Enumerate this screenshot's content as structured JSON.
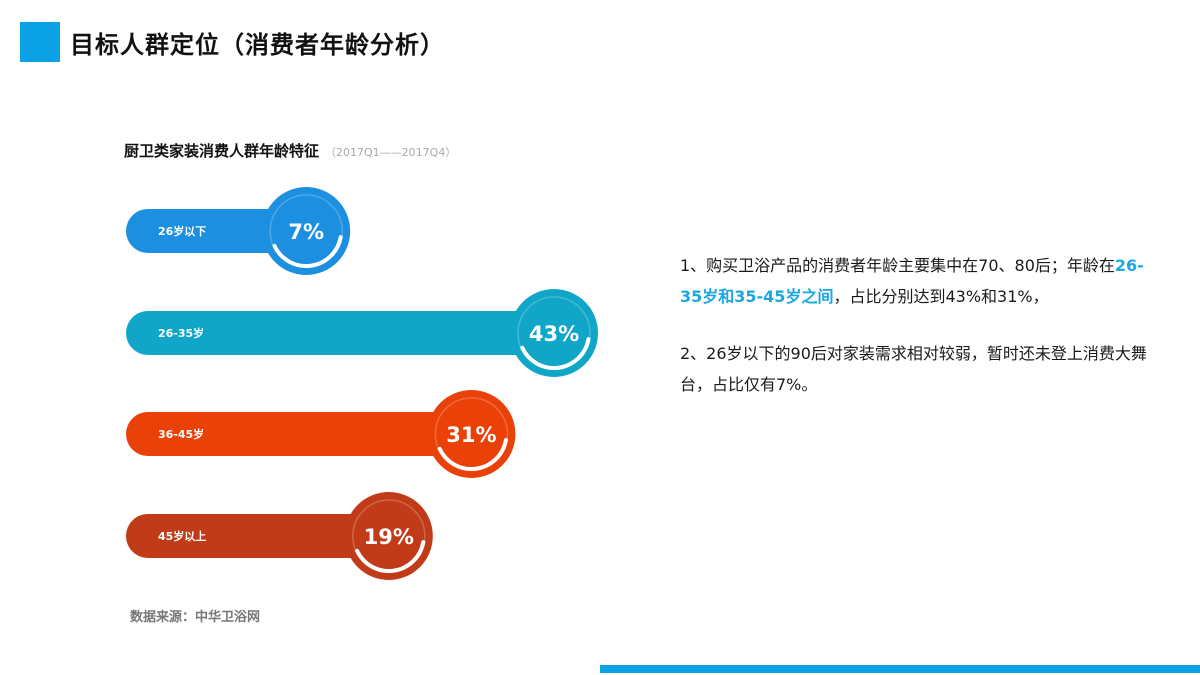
{
  "page": {
    "title": "目标人群定位（消费者年龄分析）"
  },
  "chart_data": {
    "type": "bar",
    "title": "厨卫类家装消费人群年龄特征",
    "subtitle": "（2017Q1——2017Q4）",
    "categories": [
      "26岁以下",
      "26-35岁",
      "36-45岁",
      "45岁以上"
    ],
    "values": [
      7,
      43,
      31,
      19
    ],
    "value_labels": [
      "7%",
      "43%",
      "31%",
      "19%"
    ],
    "unit": "%",
    "xlim": [
      0,
      43
    ],
    "colors": [
      "#1c8fe0",
      "#10a6c7",
      "#ea4108",
      "#c23b19"
    ],
    "grid": false,
    "legend": "none"
  },
  "source": {
    "text": "数据来源：中华卫浴网"
  },
  "description": {
    "p1_before": "1、购买卫浴产品的消费者年龄主要集中在70、80后；年龄在",
    "p1_highlight": "26-35岁和35-45岁之间",
    "p1_after": "，占比分别达到43%和31%，",
    "p2": "2、26岁以下的90后对家装需求相对较弱，暂时还未登上消费大舞台，占比仅有7%。",
    "highlight_color": "#1aa7e3"
  }
}
